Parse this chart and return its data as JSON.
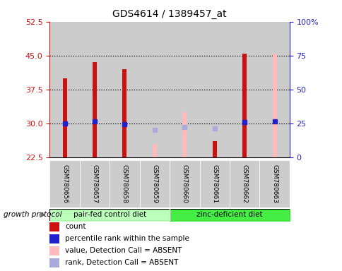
{
  "title": "GDS4614 / 1389457_at",
  "samples": [
    "GSM780656",
    "GSM780657",
    "GSM780658",
    "GSM780659",
    "GSM780660",
    "GSM780661",
    "GSM780662",
    "GSM780663"
  ],
  "count_values": [
    40.0,
    43.5,
    42.0,
    null,
    null,
    26.0,
    45.5,
    null
  ],
  "count_absent_values": [
    null,
    null,
    null,
    25.5,
    32.5,
    null,
    null,
    45.5
  ],
  "rank_values": [
    30.0,
    30.5,
    29.8,
    null,
    null,
    null,
    30.2,
    30.5
  ],
  "rank_absent_values": [
    null,
    null,
    null,
    28.5,
    29.2,
    28.8,
    null,
    null
  ],
  "ylim": [
    22.5,
    52.5
  ],
  "y2lim": [
    0,
    100
  ],
  "yticks": [
    22.5,
    30.0,
    37.5,
    45.0,
    52.5
  ],
  "y2ticks": [
    0,
    25,
    50,
    75,
    100
  ],
  "dotted_lines": [
    30.0,
    37.5,
    45.0
  ],
  "group1_label": "pair-fed control diet",
  "group1_samples": [
    0,
    1,
    2,
    3
  ],
  "group2_label": "zinc-deficient diet",
  "group2_samples": [
    4,
    5,
    6,
    7
  ],
  "group_label_prefix": "growth protocol",
  "group1_color": "#bbffbb",
  "group2_color": "#44ee44",
  "plot_bg_color": "#ffffff",
  "xlabels_bg": "#cccccc",
  "bar_color_red": "#cc1111",
  "bar_color_pink": "#ffbbbb",
  "dot_color_blue": "#2222cc",
  "dot_color_lightblue": "#aaaadd",
  "bar_width": 0.4,
  "legend_items": [
    {
      "label": "count",
      "color": "#cc1111"
    },
    {
      "label": "percentile rank within the sample",
      "color": "#2222cc"
    },
    {
      "label": "value, Detection Call = ABSENT",
      "color": "#ffbbbb"
    },
    {
      "label": "rank, Detection Call = ABSENT",
      "color": "#aaaadd"
    }
  ]
}
